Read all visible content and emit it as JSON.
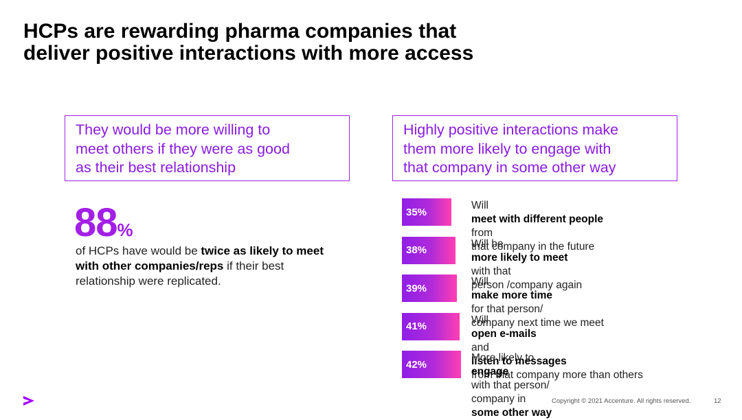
{
  "title": {
    "line1": "HCPs are rewarding pharma companies that",
    "line2": "deliver positive interactions with more access"
  },
  "left_box": {
    "lines": [
      "They would be more willing to",
      "meet others if they were as good",
      "as their best relationship"
    ]
  },
  "right_box": {
    "lines": [
      "Highly positive interactions make",
      "them more likely to engage with",
      "that company in some other way"
    ]
  },
  "big_stat": {
    "value": "88",
    "unit": "%",
    "desc": {
      "part1": "of HCPs have would be ",
      "bold1": "twice as likely to meet with other companies/reps",
      "part2": " if their best relationship were replicated."
    }
  },
  "chart_data": {
    "type": "bar",
    "orientation": "horizontal",
    "categories": [
      "Will meet with different people from that company in the future",
      "Will be more likely to meet with that person /company again",
      "Will make more time for that person/ company next time we meet",
      "Will open e-mails and listen to messages from that company more than others",
      "More likely to engage with that person/ company in some other way"
    ],
    "values": [
      35,
      38,
      39,
      41,
      42
    ],
    "value_labels": [
      "35%",
      "38%",
      "39%",
      "41%",
      "42%"
    ],
    "colors": {
      "gradient_start": "#8f1fe6",
      "gradient_end": "#ff3fb3"
    }
  },
  "bar_labels": [
    {
      "l1": [
        {
          "t": "Will "
        },
        {
          "t": "meet with different people",
          "b": true
        },
        {
          "t": " from"
        }
      ],
      "l2": [
        {
          "t": "that company in the future"
        }
      ]
    },
    {
      "l1": [
        {
          "t": "Will be "
        },
        {
          "t": "more likely to meet",
          "b": true
        },
        {
          "t": " with that"
        }
      ],
      "l2": [
        {
          "t": "person /company again"
        }
      ]
    },
    {
      "l1": [
        {
          "t": "Will "
        },
        {
          "t": "make more time",
          "b": true
        },
        {
          "t": " for that person/"
        }
      ],
      "l2": [
        {
          "t": "company next time we meet"
        }
      ]
    },
    {
      "l1": [
        {
          "t": "Will "
        },
        {
          "t": "open e-mails",
          "b": true
        },
        {
          "t": " and "
        },
        {
          "t": "listen to messages",
          "b": true
        }
      ],
      "l2": [
        {
          "t": "from that company more than others"
        }
      ]
    },
    {
      "l1": [
        {
          "t": "More likely to "
        },
        {
          "t": "engage",
          "b": true
        },
        {
          "t": " with that person/"
        }
      ],
      "l2": [
        {
          "t": "company in "
        },
        {
          "t": "some other way",
          "b": true
        }
      ]
    }
  ],
  "footer": {
    "logo_icon": "accenture-greater-than-logo-icon",
    "copyright": "Copyright © 2021 Accenture. All rights reserved.",
    "page_number": "12"
  },
  "colors": {
    "accent_purple": "#a100ff",
    "box_text": "#8a1be0",
    "stat_color": "#a31fe6"
  }
}
